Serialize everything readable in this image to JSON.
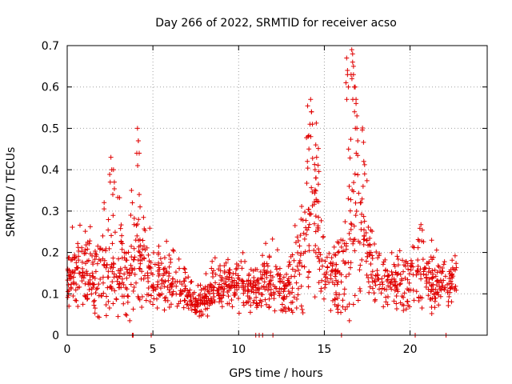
{
  "chart_data": {
    "type": "scatter",
    "title": "Day 266 of 2022, SRMTID for receiver acso",
    "xlabel": "GPS time / hours",
    "ylabel": "SRMTID / TECUs",
    "xlim": [
      0,
      24.5
    ],
    "ylim": [
      0,
      0.7
    ],
    "x_ticks": [
      0,
      5,
      10,
      15,
      20
    ],
    "x_tick_labels": [
      "0",
      "5",
      "10",
      "15",
      "20"
    ],
    "y_ticks": [
      0,
      0.1,
      0.2,
      0.3,
      0.4,
      0.5,
      0.6,
      0.7
    ],
    "y_tick_labels": [
      "0",
      "0.1",
      "0.2",
      "0.3",
      "0.4",
      "0.5",
      "0.6",
      "0.7"
    ],
    "grid": true,
    "marker": "plus",
    "color": "#e00000",
    "envelope": {
      "description": "typical SRMTID level (TECU) vs GPS hour used to render the scatter cloud",
      "x": [
        0,
        0.5,
        1,
        1.5,
        2,
        2.5,
        3,
        3.5,
        4,
        4.5,
        5,
        5.5,
        6,
        6.5,
        7,
        7.5,
        8,
        8.5,
        9,
        9.5,
        10,
        10.5,
        11,
        11.5,
        12,
        12.5,
        13,
        13.5,
        14,
        14.5,
        15,
        15.5,
        16,
        16.5,
        17,
        17.5,
        18,
        18.5,
        19,
        19.5,
        20,
        20.5,
        21,
        21.5,
        22,
        22.5
      ],
      "center": [
        0.13,
        0.15,
        0.15,
        0.13,
        0.13,
        0.17,
        0.16,
        0.13,
        0.18,
        0.15,
        0.14,
        0.13,
        0.12,
        0.11,
        0.09,
        0.07,
        0.08,
        0.11,
        0.12,
        0.12,
        0.12,
        0.11,
        0.11,
        0.12,
        0.13,
        0.1,
        0.12,
        0.16,
        0.25,
        0.28,
        0.14,
        0.13,
        0.15,
        0.22,
        0.28,
        0.2,
        0.14,
        0.12,
        0.12,
        0.12,
        0.14,
        0.15,
        0.13,
        0.12,
        0.12,
        0.13
      ],
      "spread": [
        0.05,
        0.07,
        0.08,
        0.07,
        0.09,
        0.12,
        0.1,
        0.08,
        0.12,
        0.07,
        0.06,
        0.06,
        0.05,
        0.04,
        0.03,
        0.025,
        0.03,
        0.04,
        0.04,
        0.05,
        0.05,
        0.04,
        0.04,
        0.05,
        0.06,
        0.04,
        0.05,
        0.08,
        0.15,
        0.18,
        0.06,
        0.06,
        0.09,
        0.2,
        0.17,
        0.09,
        0.05,
        0.05,
        0.04,
        0.05,
        0.06,
        0.07,
        0.06,
        0.05,
        0.05,
        0.05
      ]
    },
    "peaks": [
      {
        "x": 2.55,
        "y": 0.43
      },
      {
        "x": 2.7,
        "y": 0.4
      },
      {
        "x": 3.75,
        "y": 0.35
      },
      {
        "x": 4.1,
        "y": 0.5
      },
      {
        "x": 4.15,
        "y": 0.47
      },
      {
        "x": 4.2,
        "y": 0.34
      },
      {
        "x": 14.05,
        "y": 0.48
      },
      {
        "x": 14.2,
        "y": 0.57
      },
      {
        "x": 14.25,
        "y": 0.54
      },
      {
        "x": 14.5,
        "y": 0.46
      },
      {
        "x": 16.3,
        "y": 0.67
      },
      {
        "x": 16.35,
        "y": 0.63
      },
      {
        "x": 16.6,
        "y": 0.69
      },
      {
        "x": 16.65,
        "y": 0.68
      },
      {
        "x": 16.7,
        "y": 0.63
      },
      {
        "x": 16.8,
        "y": 0.6
      },
      {
        "x": 16.85,
        "y": 0.56
      },
      {
        "x": 16.9,
        "y": 0.5
      },
      {
        "x": 17.3,
        "y": 0.42
      }
    ],
    "zero_markers_x": [
      3.8,
      3.85,
      4.9,
      11.0,
      11.2,
      11.4,
      12.0,
      16.0,
      20.3,
      22.1
    ],
    "x_end_hours": 22.7,
    "point_count": 1400
  }
}
